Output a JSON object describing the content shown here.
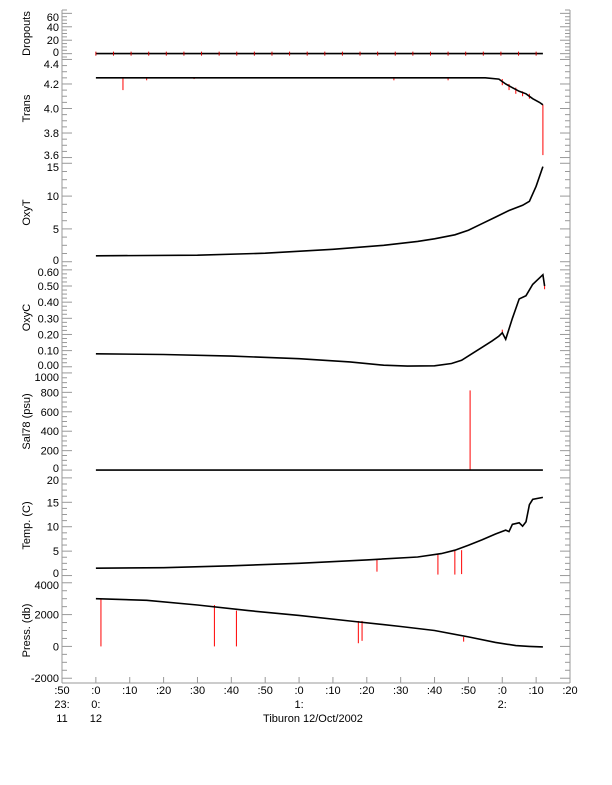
{
  "chart_data": {
    "type": "line",
    "title": "Tiburon 12/Oct/2002",
    "xlabel": "Tiburon 12/Oct/2002",
    "x_units": "minutes since 0:00 (12 Oct)",
    "xlim": [
      -10,
      140
    ],
    "x_ticks": [
      {
        "t": -10,
        "label": ":50",
        "hour": "23:",
        "day": "11"
      },
      {
        "t": 0,
        "label": ":0",
        "hour": "0:",
        "day": "12"
      },
      {
        "t": 10,
        "label": ":10"
      },
      {
        "t": 20,
        "label": ":20"
      },
      {
        "t": 30,
        "label": ":30"
      },
      {
        "t": 40,
        "label": ":40"
      },
      {
        "t": 50,
        "label": ":50"
      },
      {
        "t": 60,
        "label": ":0",
        "hour": "1:"
      },
      {
        "t": 70,
        "label": ":10"
      },
      {
        "t": 80,
        "label": ":20"
      },
      {
        "t": 90,
        "label": ":30"
      },
      {
        "t": 100,
        "label": ":40"
      },
      {
        "t": 110,
        "label": ":50"
      },
      {
        "t": 120,
        "label": ":0",
        "hour": "2:"
      },
      {
        "t": 130,
        "label": ":10"
      },
      {
        "t": 140,
        "label": ":20"
      }
    ],
    "panels": [
      {
        "name": "dropouts",
        "ylabel": "Dropouts",
        "ylim": [
          -5,
          65
        ],
        "ticks": [
          "0",
          "20",
          "40",
          "60"
        ],
        "tick_values": [
          0,
          20,
          40,
          60
        ],
        "series": [
          [
            0,
            0
          ],
          [
            132,
            0
          ]
        ],
        "spikes": []
      },
      {
        "name": "trans",
        "ylabel": "Trans",
        "ylim": [
          3.58,
          4.42
        ],
        "ticks": [
          "3.6",
          "3.8",
          "4.0",
          "4.2",
          "4.4"
        ],
        "tick_values": [
          3.6,
          3.8,
          4.0,
          4.2,
          4.4
        ],
        "series": [
          [
            0,
            4.25
          ],
          [
            60,
            4.25
          ],
          [
            90,
            4.25
          ],
          [
            115,
            4.25
          ],
          [
            119,
            4.24
          ],
          [
            121,
            4.2
          ],
          [
            123,
            4.17
          ],
          [
            125,
            4.14
          ],
          [
            127,
            4.12
          ],
          [
            129,
            4.08
          ],
          [
            131,
            4.05
          ],
          [
            132,
            4.03
          ]
        ],
        "spikes": [
          [
            8,
            4.15
          ],
          [
            15,
            4.23
          ],
          [
            29,
            4.24
          ],
          [
            88,
            4.23
          ],
          [
            104,
            4.23
          ],
          [
            120,
            4.19
          ],
          [
            122,
            4.15
          ],
          [
            124,
            4.12
          ],
          [
            126,
            4.1
          ],
          [
            128,
            4.08
          ],
          [
            132,
            3.62
          ]
        ]
      },
      {
        "name": "oxyt",
        "ylabel": "OxyT",
        "ylim": [
          -0.5,
          15.5
        ],
        "ticks": [
          "0",
          "5",
          "10",
          "15"
        ],
        "tick_values": [
          0,
          5,
          10,
          15
        ],
        "series": [
          [
            0,
            0.9
          ],
          [
            30,
            1.0
          ],
          [
            50,
            1.3
          ],
          [
            70,
            1.9
          ],
          [
            85,
            2.5
          ],
          [
            95,
            3.1
          ],
          [
            100,
            3.5
          ],
          [
            106,
            4.1
          ],
          [
            110,
            4.8
          ],
          [
            114,
            5.8
          ],
          [
            118,
            6.8
          ],
          [
            122,
            7.8
          ],
          [
            126,
            8.6
          ],
          [
            128,
            9.2
          ],
          [
            130,
            11.5
          ],
          [
            132,
            14.5
          ]
        ],
        "spikes": []
      },
      {
        "name": "oxyc",
        "ylabel": "OxyC",
        "ylim": [
          -0.02,
          0.63
        ],
        "ticks": [
          "0.00",
          "0.10",
          "0.20",
          "0.30",
          "0.40",
          "0.50",
          "0.60"
        ],
        "tick_values": [
          0,
          0.1,
          0.2,
          0.3,
          0.4,
          0.5,
          0.6
        ],
        "series": [
          [
            0,
            0.08
          ],
          [
            20,
            0.076
          ],
          [
            40,
            0.066
          ],
          [
            60,
            0.05
          ],
          [
            75,
            0.03
          ],
          [
            85,
            0.01
          ],
          [
            92,
            0.004
          ],
          [
            100,
            0.006
          ],
          [
            105,
            0.02
          ],
          [
            108,
            0.04
          ],
          [
            111,
            0.08
          ],
          [
            114,
            0.12
          ],
          [
            117,
            0.16
          ],
          [
            119,
            0.19
          ],
          [
            120,
            0.21
          ],
          [
            121,
            0.17
          ],
          [
            123,
            0.3
          ],
          [
            124,
            0.36
          ],
          [
            125,
            0.42
          ],
          [
            127,
            0.44
          ],
          [
            129,
            0.51
          ],
          [
            131,
            0.55
          ],
          [
            132,
            0.57
          ],
          [
            132.5,
            0.5
          ]
        ],
        "spikes": [
          [
            120,
            0.23
          ],
          [
            132.5,
            0.48
          ]
        ]
      },
      {
        "name": "sal78",
        "ylabel": "Sal78 (psu)",
        "ylim": [
          -30,
          1030
        ],
        "ticks": [
          "0",
          "200",
          "400",
          "600",
          "800",
          "1000"
        ],
        "tick_values": [
          0,
          200,
          400,
          600,
          800,
          1000
        ],
        "series": [
          [
            0,
            0
          ],
          [
            132,
            0
          ]
        ],
        "spikes": [
          [
            110.5,
            820
          ]
        ]
      },
      {
        "name": "temp",
        "ylabel": "Temp. (C)",
        "ylim": [
          -0.5,
          21
        ],
        "ticks": [
          "0",
          "5",
          "10",
          "15",
          "20"
        ],
        "tick_values": [
          0,
          5,
          10,
          15,
          20
        ],
        "series": [
          [
            0,
            1.5
          ],
          [
            20,
            1.6
          ],
          [
            40,
            2.0
          ],
          [
            60,
            2.5
          ],
          [
            80,
            3.2
          ],
          [
            95,
            3.8
          ],
          [
            102,
            4.5
          ],
          [
            106,
            5.2
          ],
          [
            110,
            6.2
          ],
          [
            114,
            7.3
          ],
          [
            118,
            8.5
          ],
          [
            121,
            9.3
          ],
          [
            122,
            9.0
          ],
          [
            123,
            10.5
          ],
          [
            125,
            10.8
          ],
          [
            126,
            10.1
          ],
          [
            127,
            11.0
          ],
          [
            128,
            14.5
          ],
          [
            129,
            15.6
          ],
          [
            132,
            16.0
          ]
        ],
        "spikes": [
          [
            83,
            0.8
          ],
          [
            101,
            0.2
          ],
          [
            106,
            0.2
          ],
          [
            108,
            0.3
          ]
        ]
      },
      {
        "name": "press",
        "ylabel": "Press. (db)",
        "ylim": [
          -2300,
          4300
        ],
        "ticks": [
          "-2000",
          "0",
          "2000",
          "4000"
        ],
        "tick_values": [
          -2000,
          0,
          2000,
          4000
        ],
        "series": [
          [
            0,
            3000
          ],
          [
            15,
            2900
          ],
          [
            30,
            2600
          ],
          [
            45,
            2250
          ],
          [
            60,
            1950
          ],
          [
            75,
            1600
          ],
          [
            90,
            1250
          ],
          [
            100,
            1000
          ],
          [
            110,
            600
          ],
          [
            118,
            250
          ],
          [
            124,
            50
          ],
          [
            128,
            0
          ],
          [
            132,
            -30
          ]
        ],
        "spikes": [
          [
            1.5,
            0
          ],
          [
            35,
            0
          ],
          [
            41.5,
            0
          ],
          [
            77.5,
            200
          ],
          [
            78.6,
            350
          ],
          [
            108.6,
            300
          ]
        ]
      }
    ]
  }
}
